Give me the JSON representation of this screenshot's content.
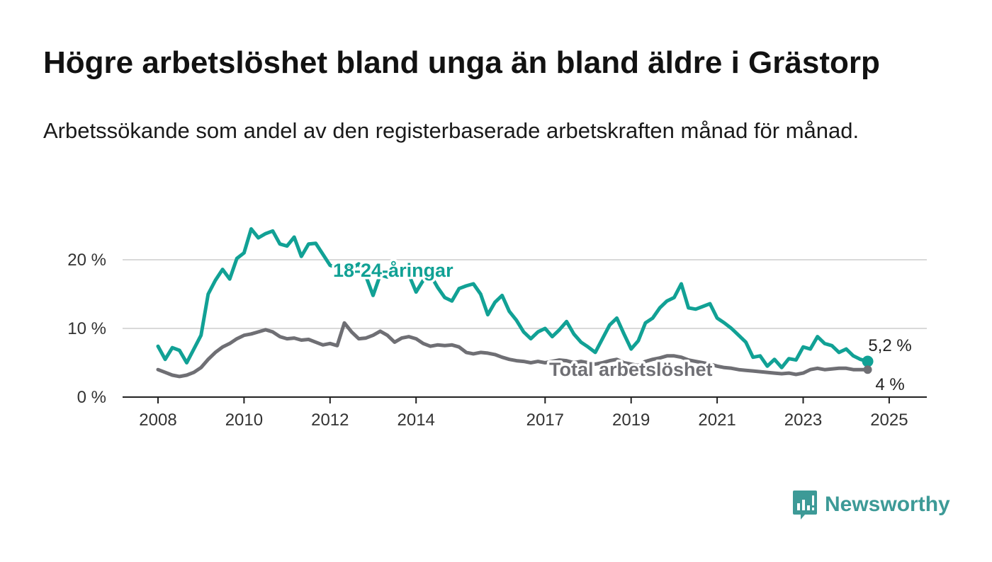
{
  "title": "Högre arbetslöshet bland unga än bland äldre i Grästorp",
  "subtitle": "Arbetssökande som andel av den registerbaserade arbetskraften månad för månad.",
  "logo": {
    "text": "Newsworthy"
  },
  "colors": {
    "youth": "#11a195",
    "total": "#6f6f74",
    "grid": "#d9d9d9",
    "axis": "#222222"
  },
  "chart_data": {
    "type": "line",
    "title": "Högre arbetslöshet bland unga än bland äldre i Grästorp",
    "subtitle": "Arbetssökande som andel av den registerbaserade arbetskraften månad för månad.",
    "x_ticks": [
      "2008",
      "2010",
      "2012",
      "2014",
      "2017",
      "2019",
      "2021",
      "2023",
      "2025"
    ],
    "y_ticks": [
      0,
      10,
      20
    ],
    "y_tick_labels": [
      "0 %",
      "10 %",
      "20 %"
    ],
    "ylim": [
      0,
      25
    ],
    "xlim": [
      "2007-03",
      "2025-12"
    ],
    "grid": true,
    "legend": "inline labels",
    "series": [
      {
        "name": "18-24-åringar",
        "end_label": "5,2 %",
        "points": [
          [
            "2008-01",
            7.4
          ],
          [
            "2008-03",
            5.5
          ],
          [
            "2008-05",
            7.2
          ],
          [
            "2008-07",
            6.8
          ],
          [
            "2008-09",
            5.0
          ],
          [
            "2008-11",
            7.0
          ],
          [
            "2009-01",
            9.0
          ],
          [
            "2009-03",
            15.0
          ],
          [
            "2009-05",
            17.0
          ],
          [
            "2009-07",
            18.6
          ],
          [
            "2009-09",
            17.2
          ],
          [
            "2009-11",
            20.2
          ],
          [
            "2010-01",
            21.0
          ],
          [
            "2010-03",
            24.5
          ],
          [
            "2010-05",
            23.2
          ],
          [
            "2010-07",
            23.8
          ],
          [
            "2010-09",
            24.2
          ],
          [
            "2010-11",
            22.3
          ],
          [
            "2011-01",
            22.0
          ],
          [
            "2011-03",
            23.3
          ],
          [
            "2011-05",
            20.5
          ],
          [
            "2011-07",
            22.3
          ],
          [
            "2011-09",
            22.4
          ],
          [
            "2011-11",
            20.8
          ],
          [
            "2012-01",
            19.2
          ],
          [
            "2012-03",
            18.8
          ],
          [
            "2012-05",
            19.2
          ],
          [
            "2012-07",
            18.7
          ],
          [
            "2012-09",
            19.4
          ],
          [
            "2012-11",
            17.6
          ],
          [
            "2013-01",
            14.8
          ],
          [
            "2013-03",
            17.8
          ],
          [
            "2013-05",
            17.5
          ],
          [
            "2013-07",
            18.3
          ],
          [
            "2013-09",
            18.0
          ],
          [
            "2013-11",
            17.8
          ],
          [
            "2014-01",
            15.3
          ],
          [
            "2014-03",
            17.0
          ],
          [
            "2014-05",
            17.8
          ],
          [
            "2014-07",
            16.0
          ],
          [
            "2014-09",
            14.5
          ],
          [
            "2014-11",
            14.0
          ],
          [
            "2015-01",
            15.8
          ],
          [
            "2015-03",
            16.2
          ],
          [
            "2015-05",
            16.5
          ],
          [
            "2015-07",
            15.0
          ],
          [
            "2015-09",
            12.0
          ],
          [
            "2015-11",
            13.8
          ],
          [
            "2016-01",
            14.8
          ],
          [
            "2016-03",
            12.5
          ],
          [
            "2016-05",
            11.2
          ],
          [
            "2016-07",
            9.5
          ],
          [
            "2016-09",
            8.5
          ],
          [
            "2016-11",
            9.5
          ],
          [
            "2017-01",
            10.0
          ],
          [
            "2017-03",
            8.8
          ],
          [
            "2017-05",
            9.8
          ],
          [
            "2017-07",
            11.0
          ],
          [
            "2017-09",
            9.2
          ],
          [
            "2017-11",
            8.0
          ],
          [
            "2018-01",
            7.3
          ],
          [
            "2018-03",
            6.5
          ],
          [
            "2018-05",
            8.5
          ],
          [
            "2018-07",
            10.5
          ],
          [
            "2018-09",
            11.5
          ],
          [
            "2018-11",
            9.2
          ],
          [
            "2019-01",
            7.0
          ],
          [
            "2019-03",
            8.2
          ],
          [
            "2019-05",
            10.8
          ],
          [
            "2019-07",
            11.5
          ],
          [
            "2019-09",
            13.0
          ],
          [
            "2019-11",
            14.0
          ],
          [
            "2020-01",
            14.5
          ],
          [
            "2020-03",
            16.5
          ],
          [
            "2020-05",
            13.0
          ],
          [
            "2020-07",
            12.8
          ],
          [
            "2020-09",
            13.2
          ],
          [
            "2020-11",
            13.6
          ],
          [
            "2021-01",
            11.5
          ],
          [
            "2021-03",
            10.8
          ],
          [
            "2021-05",
            10.0
          ],
          [
            "2021-07",
            9.0
          ],
          [
            "2021-09",
            8.0
          ],
          [
            "2021-11",
            5.8
          ],
          [
            "2022-01",
            6.0
          ],
          [
            "2022-03",
            4.5
          ],
          [
            "2022-05",
            5.5
          ],
          [
            "2022-07",
            4.3
          ],
          [
            "2022-09",
            5.6
          ],
          [
            "2022-11",
            5.4
          ],
          [
            "2023-01",
            7.3
          ],
          [
            "2023-03",
            7.0
          ],
          [
            "2023-05",
            8.8
          ],
          [
            "2023-07",
            7.8
          ],
          [
            "2023-09",
            7.5
          ],
          [
            "2023-11",
            6.5
          ],
          [
            "2024-01",
            7.0
          ],
          [
            "2024-03",
            6.0
          ],
          [
            "2024-05",
            5.5
          ],
          [
            "2024-07",
            5.2
          ]
        ]
      },
      {
        "name": "Total arbetslöshet",
        "end_label": "4 %",
        "points": [
          [
            "2008-01",
            4.0
          ],
          [
            "2008-03",
            3.6
          ],
          [
            "2008-05",
            3.2
          ],
          [
            "2008-07",
            3.0
          ],
          [
            "2008-09",
            3.2
          ],
          [
            "2008-11",
            3.6
          ],
          [
            "2009-01",
            4.3
          ],
          [
            "2009-03",
            5.5
          ],
          [
            "2009-05",
            6.5
          ],
          [
            "2009-07",
            7.3
          ],
          [
            "2009-09",
            7.8
          ],
          [
            "2009-11",
            8.5
          ],
          [
            "2010-01",
            9.0
          ],
          [
            "2010-03",
            9.2
          ],
          [
            "2010-05",
            9.5
          ],
          [
            "2010-07",
            9.8
          ],
          [
            "2010-09",
            9.5
          ],
          [
            "2010-11",
            8.8
          ],
          [
            "2011-01",
            8.5
          ],
          [
            "2011-03",
            8.6
          ],
          [
            "2011-05",
            8.3
          ],
          [
            "2011-07",
            8.4
          ],
          [
            "2011-09",
            8.0
          ],
          [
            "2011-11",
            7.6
          ],
          [
            "2012-01",
            7.8
          ],
          [
            "2012-03",
            7.5
          ],
          [
            "2012-05",
            10.8
          ],
          [
            "2012-07",
            9.5
          ],
          [
            "2012-09",
            8.5
          ],
          [
            "2012-11",
            8.6
          ],
          [
            "2013-01",
            9.0
          ],
          [
            "2013-03",
            9.6
          ],
          [
            "2013-05",
            9.0
          ],
          [
            "2013-07",
            8.0
          ],
          [
            "2013-09",
            8.6
          ],
          [
            "2013-11",
            8.8
          ],
          [
            "2014-01",
            8.5
          ],
          [
            "2014-03",
            7.8
          ],
          [
            "2014-05",
            7.4
          ],
          [
            "2014-07",
            7.6
          ],
          [
            "2014-09",
            7.5
          ],
          [
            "2014-11",
            7.6
          ],
          [
            "2015-01",
            7.3
          ],
          [
            "2015-03",
            6.5
          ],
          [
            "2015-05",
            6.3
          ],
          [
            "2015-07",
            6.5
          ],
          [
            "2015-09",
            6.4
          ],
          [
            "2015-11",
            6.2
          ],
          [
            "2016-01",
            5.8
          ],
          [
            "2016-03",
            5.5
          ],
          [
            "2016-05",
            5.3
          ],
          [
            "2016-07",
            5.2
          ],
          [
            "2016-09",
            5.0
          ],
          [
            "2016-11",
            5.2
          ],
          [
            "2017-01",
            5.0
          ],
          [
            "2017-03",
            5.2
          ],
          [
            "2017-05",
            5.4
          ],
          [
            "2017-07",
            5.3
          ],
          [
            "2017-09",
            5.0
          ],
          [
            "2017-11",
            5.2
          ],
          [
            "2018-01",
            5.0
          ],
          [
            "2018-03",
            4.8
          ],
          [
            "2018-05",
            5.0
          ],
          [
            "2018-07",
            5.3
          ],
          [
            "2018-09",
            5.5
          ],
          [
            "2018-11",
            5.0
          ],
          [
            "2019-01",
            4.8
          ],
          [
            "2019-03",
            4.6
          ],
          [
            "2019-05",
            5.2
          ],
          [
            "2019-07",
            5.5
          ],
          [
            "2019-09",
            5.7
          ],
          [
            "2019-11",
            6.0
          ],
          [
            "2020-01",
            6.0
          ],
          [
            "2020-03",
            5.8
          ],
          [
            "2020-05",
            5.4
          ],
          [
            "2020-07",
            5.2
          ],
          [
            "2020-09",
            5.0
          ],
          [
            "2020-11",
            4.8
          ],
          [
            "2021-01",
            4.5
          ],
          [
            "2021-03",
            4.3
          ],
          [
            "2021-05",
            4.2
          ],
          [
            "2021-07",
            4.0
          ],
          [
            "2021-09",
            3.9
          ],
          [
            "2021-11",
            3.8
          ],
          [
            "2022-01",
            3.7
          ],
          [
            "2022-03",
            3.6
          ],
          [
            "2022-05",
            3.5
          ],
          [
            "2022-07",
            3.4
          ],
          [
            "2022-09",
            3.5
          ],
          [
            "2022-11",
            3.3
          ],
          [
            "2023-01",
            3.5
          ],
          [
            "2023-03",
            4.0
          ],
          [
            "2023-05",
            4.2
          ],
          [
            "2023-07",
            4.0
          ],
          [
            "2023-09",
            4.1
          ],
          [
            "2023-11",
            4.2
          ],
          [
            "2024-01",
            4.2
          ],
          [
            "2024-03",
            4.0
          ],
          [
            "2024-05",
            4.0
          ],
          [
            "2024-07",
            4.0
          ]
        ]
      }
    ]
  }
}
